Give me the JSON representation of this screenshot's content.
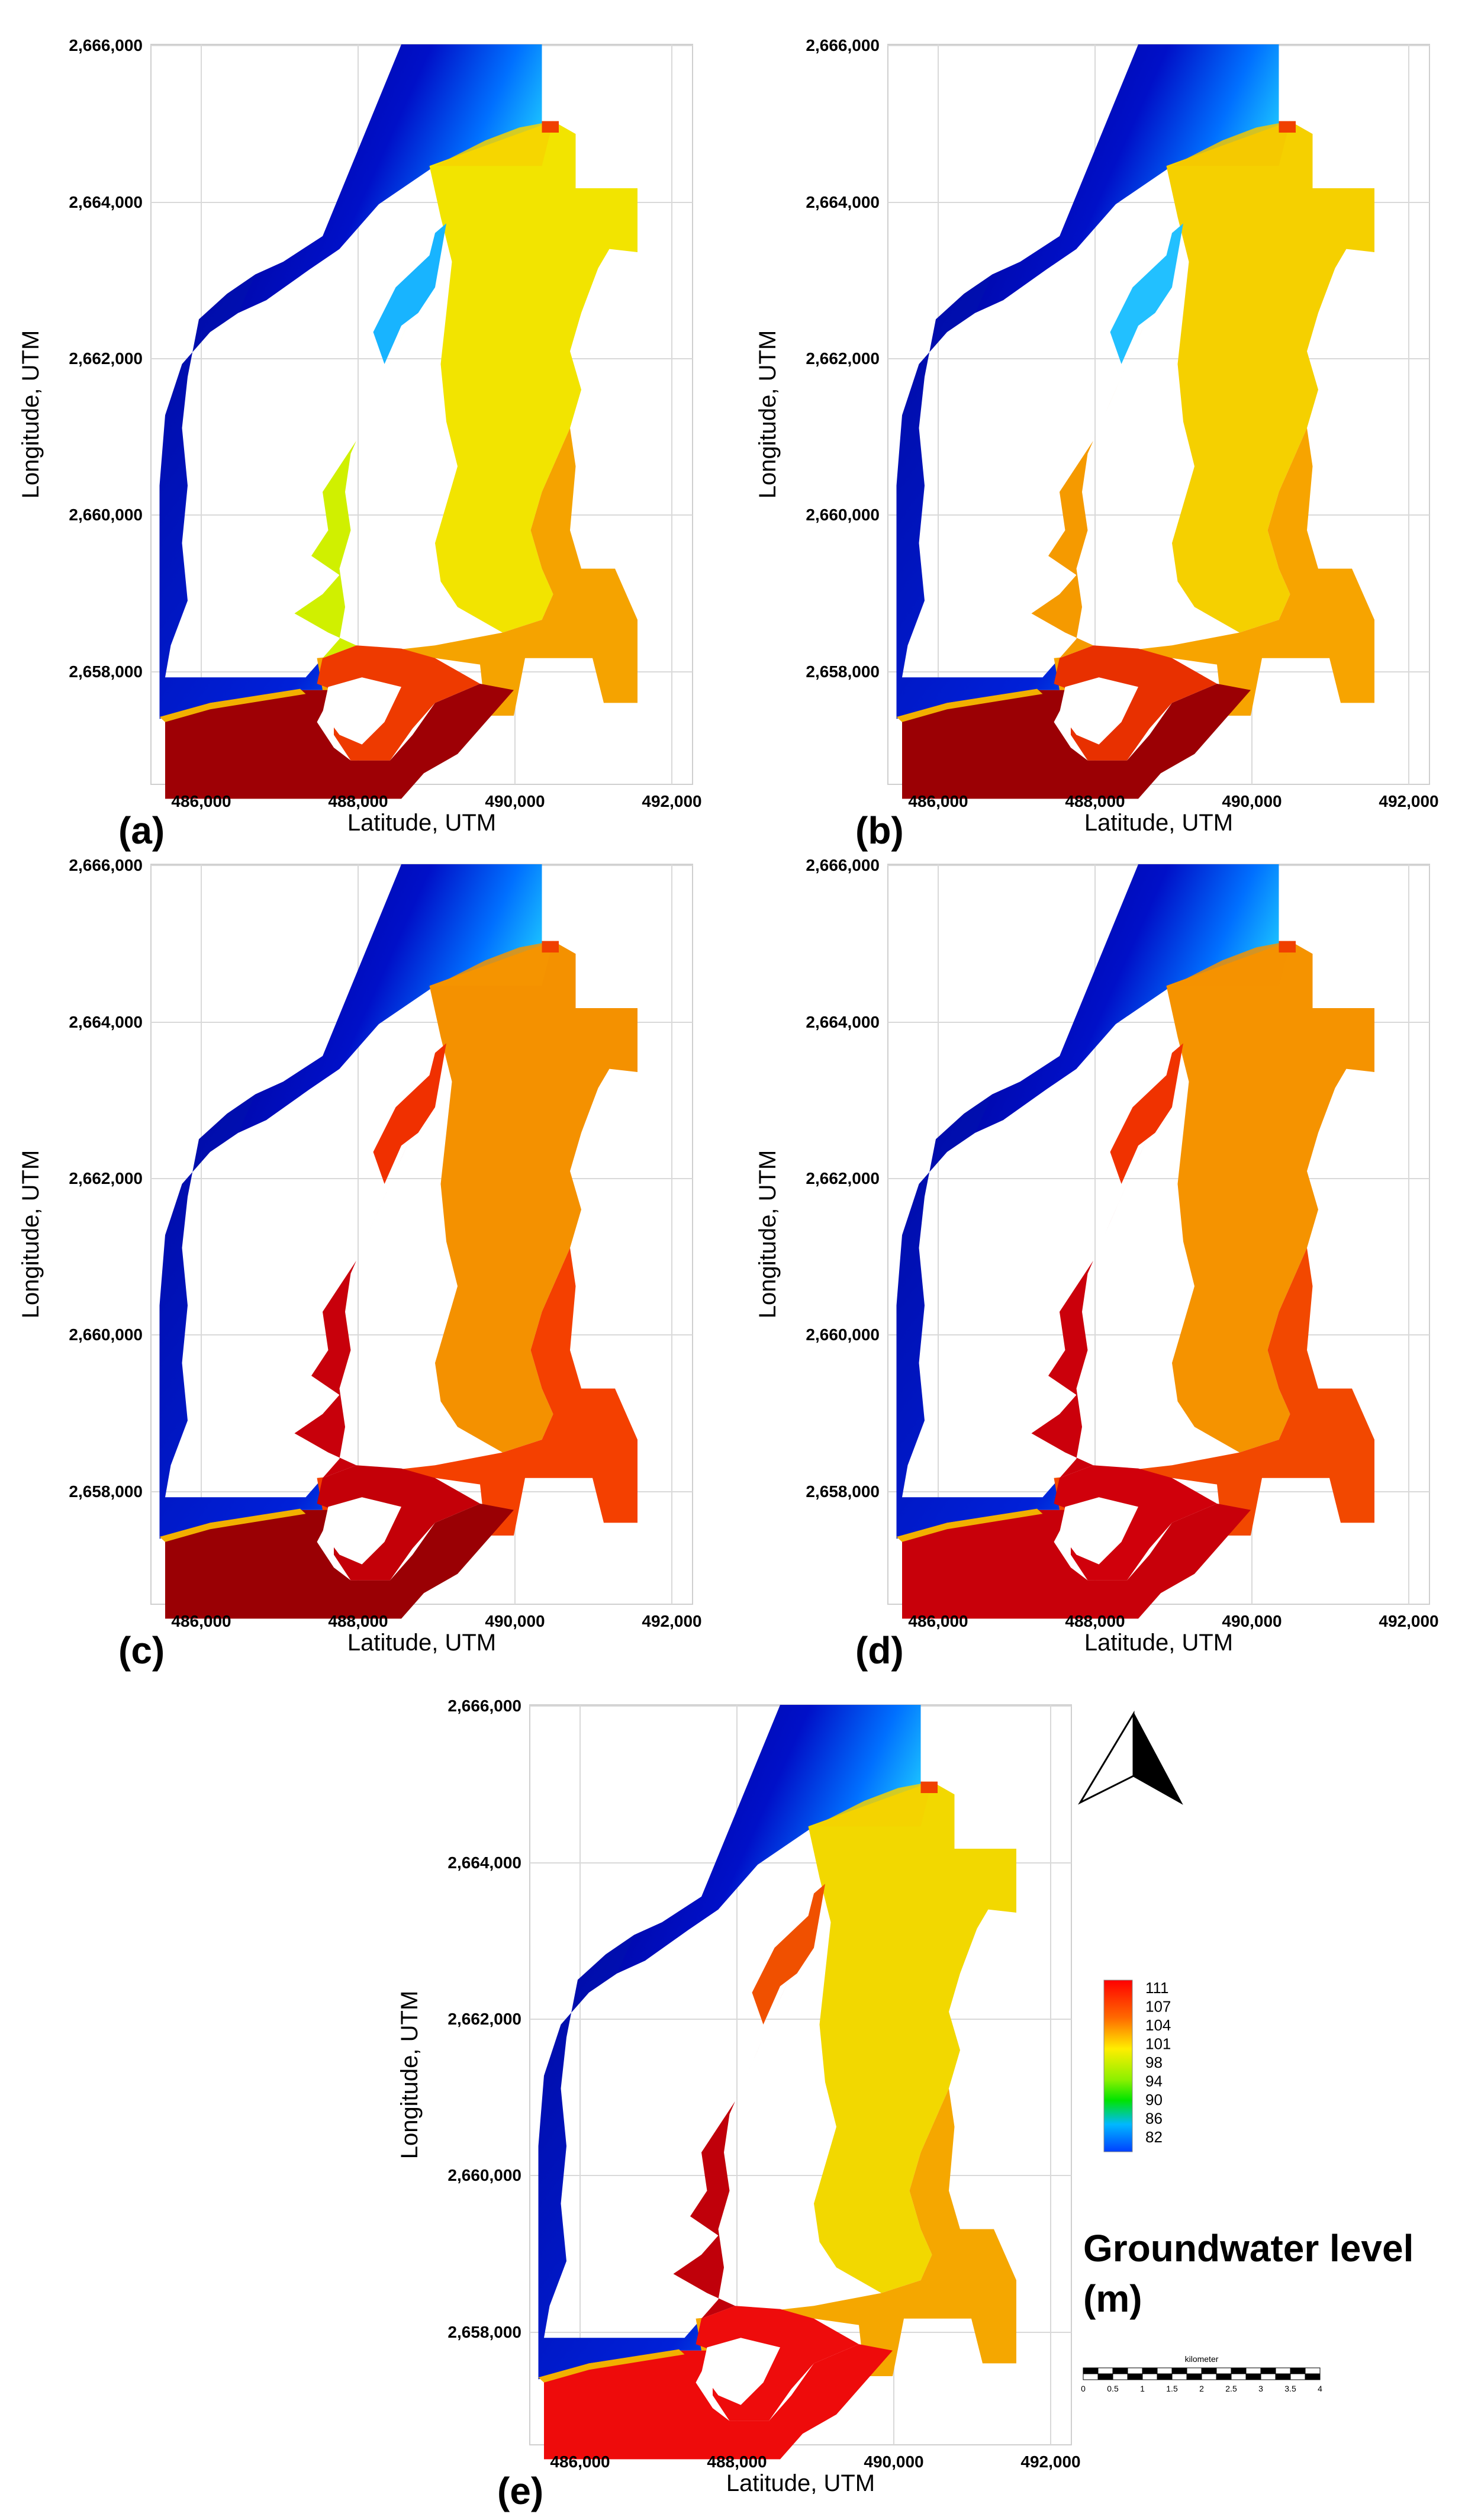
{
  "figure": {
    "axis": {
      "x_label": "Latitude, UTM",
      "y_label": "Longitude, UTM",
      "x_ticks": [
        "486,000",
        "488,000",
        "490,000",
        "492,000"
      ],
      "y_ticks": [
        "2,666,000",
        "2,664,000",
        "2,662,000",
        "2,660,000",
        "2,658,000"
      ]
    },
    "panels": [
      {
        "id": "a",
        "label": "(a)",
        "colors": {
          "NE": "#f7d400",
          "E": "#f2e400",
          "SE": "#f5a300",
          "S": "#9e0005",
          "WS": "#ee3a00",
          "W": "#d0f000",
          "WT": "#18b4ff"
        }
      },
      {
        "id": "b",
        "label": "(b)",
        "colors": {
          "NE": "#f4c800",
          "E": "#f5d000",
          "SE": "#f7a400",
          "S": "#9b0004",
          "WS": "#e83000",
          "W": "#f59a00",
          "WT": "#22c0ff"
        }
      },
      {
        "id": "c",
        "label": "(c)",
        "colors": {
          "NE": "#f49400",
          "E": "#f49100",
          "SE": "#f44000",
          "S": "#9a0004",
          "WS": "#c40008",
          "W": "#c8000b",
          "WT": "#f03000"
        }
      },
      {
        "id": "d",
        "label": "(d)",
        "colors": {
          "NE": "#f49200",
          "E": "#f59300",
          "SE": "#f24800",
          "S": "#c8000a",
          "WS": "#d0000b",
          "W": "#cb000b",
          "WT": "#f03200"
        }
      },
      {
        "id": "e",
        "label": "(e)",
        "colors": {
          "NE": "#f4d200",
          "E": "#f2d800",
          "SE": "#f5a700",
          "S": "#ee0b0b",
          "WS": "#ee0c0c",
          "W": "#c0000a",
          "WT": "#f05000"
        }
      }
    ],
    "legend": {
      "values": [
        "111",
        "107",
        "104",
        "101",
        "98",
        "94",
        "90",
        "86",
        "82"
      ],
      "title_line1": "Groundwater level",
      "title_line2": "(m)"
    },
    "scale_bar": {
      "units": "kilometer",
      "ticks": [
        "0",
        "0.5",
        "1",
        "1.5",
        "2",
        "2.5",
        "3",
        "3.5",
        "4"
      ]
    },
    "north_arrow": "north-arrow-icon",
    "colors": {
      "blue": "#0000a0",
      "grid": "#d9d9d9",
      "frame": "#cfcfcf"
    }
  }
}
